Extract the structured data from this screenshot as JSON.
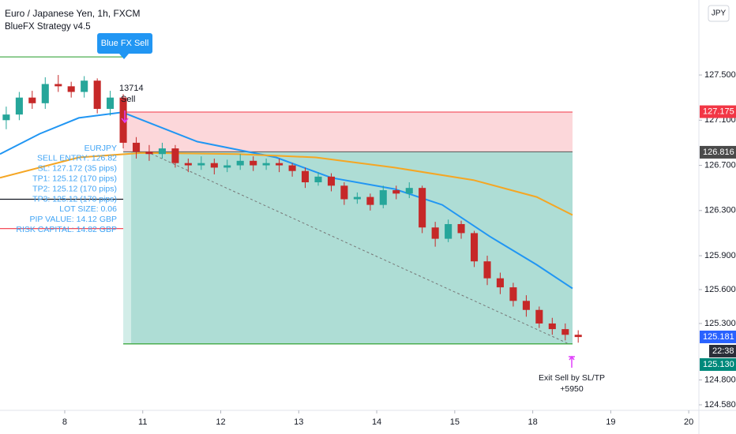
{
  "chart_data": {
    "type": "candlestick",
    "title": "Euro / Japanese Yen, 1h, FXCM",
    "subtitle": "BlueFX Strategy v4.5",
    "currency": "JPY",
    "x": [
      -0.75,
      -0.583,
      -0.417,
      -0.25,
      -0.083,
      0.083,
      0.25,
      0.417,
      0.583,
      0.75,
      0.917,
      1.083,
      1.25,
      1.417,
      1.583,
      1.75,
      1.917,
      2.083,
      2.25,
      2.417,
      2.583,
      2.75,
      2.917,
      3.083,
      3.25,
      3.417,
      3.583,
      3.75,
      3.917,
      4.083,
      4.25,
      4.417,
      4.583,
      4.75,
      4.917,
      5.083,
      5.25,
      5.417,
      5.583,
      5.75,
      5.917,
      6.083,
      6.25,
      6.417,
      6.583
    ],
    "open": [
      127.1,
      127.15,
      127.3,
      127.25,
      127.42,
      127.4,
      127.35,
      127.45,
      127.2,
      127.3,
      126.9,
      126.82,
      126.8,
      126.85,
      126.72,
      126.7,
      126.72,
      126.68,
      126.7,
      126.74,
      126.7,
      126.72,
      126.7,
      126.65,
      126.55,
      126.6,
      126.52,
      126.4,
      126.42,
      126.35,
      126.48,
      126.45,
      126.5,
      126.15,
      126.05,
      126.18,
      126.1,
      125.85,
      125.7,
      125.62,
      125.5,
      125.42,
      125.3,
      125.25,
      125.2
    ],
    "high": [
      127.22,
      127.35,
      127.36,
      127.48,
      127.5,
      127.44,
      127.49,
      127.47,
      127.36,
      127.33,
      126.95,
      126.88,
      126.9,
      126.88,
      126.76,
      126.78,
      126.76,
      126.75,
      126.8,
      126.78,
      126.76,
      126.76,
      126.72,
      126.68,
      126.64,
      126.63,
      126.55,
      126.46,
      126.45,
      126.52,
      126.52,
      126.55,
      126.52,
      126.2,
      126.22,
      126.21,
      126.12,
      125.9,
      125.75,
      125.66,
      125.55,
      125.45,
      125.35,
      125.3,
      125.24
    ],
    "low": [
      127.02,
      127.1,
      127.2,
      127.2,
      127.35,
      127.3,
      127.3,
      127.16,
      127.14,
      126.85,
      126.76,
      126.74,
      126.76,
      126.68,
      126.64,
      126.66,
      126.62,
      126.64,
      126.66,
      126.65,
      126.66,
      126.64,
      126.6,
      126.5,
      126.52,
      126.47,
      126.35,
      126.36,
      126.3,
      126.32,
      126.4,
      126.41,
      126.1,
      125.98,
      126.02,
      126.05,
      125.8,
      125.64,
      125.56,
      125.45,
      125.36,
      125.26,
      125.2,
      125.15,
      125.13
    ],
    "close": [
      127.15,
      127.3,
      127.25,
      127.42,
      127.4,
      127.35,
      127.45,
      127.2,
      127.3,
      126.9,
      126.82,
      126.8,
      126.85,
      126.72,
      126.7,
      126.72,
      126.68,
      126.7,
      126.74,
      126.7,
      126.72,
      126.7,
      126.65,
      126.55,
      126.6,
      126.52,
      126.4,
      126.42,
      126.35,
      126.48,
      126.45,
      126.5,
      126.15,
      126.05,
      126.18,
      126.1,
      125.85,
      125.7,
      125.62,
      125.5,
      125.42,
      125.3,
      125.25,
      125.2,
      125.18
    ],
    "up_color": "#26a69a",
    "down_color": "#c62828",
    "moving_averages": [
      {
        "color": "#2196f3",
        "x": [
          -0.83,
          -0.32,
          0.18,
          0.74,
          1.7,
          2.71,
          3.42,
          4.23,
          4.84,
          5.45,
          6.05,
          6.51
        ],
        "values": [
          126.8,
          126.98,
          127.12,
          127.17,
          126.91,
          126.77,
          126.59,
          126.49,
          126.35,
          126.07,
          125.82,
          125.61
        ]
      },
      {
        "color": "#f5a623",
        "x": [
          -0.83,
          0.18,
          0.99,
          2.21,
          3.22,
          4.23,
          5.24,
          6.05,
          6.51
        ],
        "values": [
          126.59,
          126.77,
          126.81,
          126.8,
          126.77,
          126.68,
          126.57,
          126.42,
          126.26
        ]
      }
    ],
    "position": {
      "x_start": 0.75,
      "x_end": 6.51,
      "entry": 126.82,
      "stop": 127.172,
      "target": 125.12
    },
    "levels": [
      {
        "value": 127.66,
        "color": "#4caf50"
      },
      {
        "value": 126.4,
        "color": "#131722"
      },
      {
        "value": 126.14,
        "color": "#f23645"
      }
    ],
    "signal": {
      "label": "Blue FX Sell",
      "id": "13714",
      "action": "Sell"
    },
    "exit": {
      "label": "Exit Sell by SL/TP",
      "profit": "+5950",
      "x": 6.5
    },
    "info": [
      "EURJPY",
      "SELL ENTRY: 126.82",
      "SL: 127.172 (35 pips)",
      "TP1: 125.12 (170 pips)",
      "TP2: 125.12 (170 pips)",
      "TP3: 125.12 (170 pips)",
      "LOT SIZE: 0.06",
      "PIP VALUE: 14.12 GBP",
      "RISK CAPITAL: 14.82 GBP"
    ],
    "price_labels": [
      {
        "value": 127.175,
        "color": "#f23645"
      },
      {
        "value": 126.816,
        "color": "#4a4a4a"
      },
      {
        "value": 125.181,
        "color": "#2962ff"
      },
      {
        "value": 125.13,
        "label": "125.130",
        "color": "#00897b"
      }
    ],
    "countdown": "22:38",
    "xlim": [
      -0.83,
      8.13
    ],
    "xticks": [
      {
        "value": 0,
        "label": "8"
      },
      {
        "value": 1,
        "label": "11"
      },
      {
        "value": 2,
        "label": "12"
      },
      {
        "value": 3,
        "label": "13"
      },
      {
        "value": 4,
        "label": "14"
      },
      {
        "value": 5,
        "label": "15"
      },
      {
        "value": 6,
        "label": "18"
      },
      {
        "value": 7,
        "label": "19"
      },
      {
        "value": 8,
        "label": "20"
      }
    ],
    "ylim": [
      124.531,
      128.164
    ],
    "yticks": [
      {
        "value": 127.5,
        "label": "127.500"
      },
      {
        "value": 127.1,
        "label": "127.100"
      },
      {
        "value": 126.7,
        "label": "126.700"
      },
      {
        "value": 126.3,
        "label": "126.300"
      },
      {
        "value": 125.9,
        "label": "125.900"
      },
      {
        "value": 125.6,
        "label": "125.600"
      },
      {
        "value": 125.3,
        "label": "125.300"
      },
      {
        "value": 124.8,
        "label": "124.800"
      },
      {
        "value": 124.58,
        "label": "124.580"
      }
    ],
    "grid": false
  }
}
